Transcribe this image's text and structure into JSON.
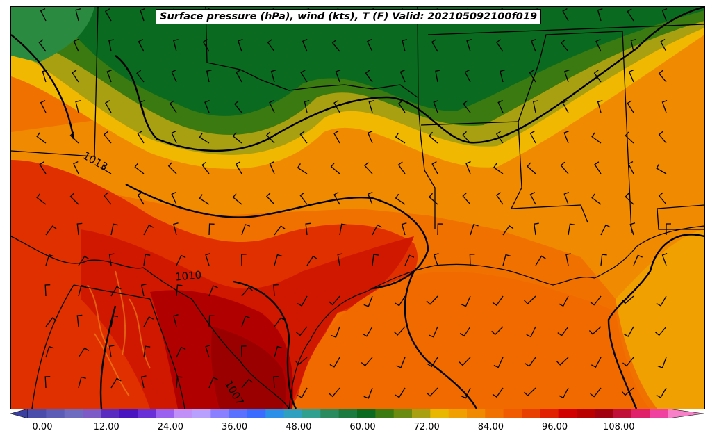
{
  "title": "Surface pressure (hPa), wind (kts), T (F) Valid: 202105092100f019",
  "isobar_labels": [
    "1013",
    "1010",
    "1007"
  ],
  "colorbar": {
    "ticks": [
      "0.00",
      "12.00",
      "24.00",
      "36.00",
      "48.00",
      "60.00",
      "72.00",
      "84.00",
      "96.00",
      "108.00"
    ],
    "colors": [
      "#3a3fa0",
      "#4a4eaa",
      "#5a5cb5",
      "#6e6cc0",
      "#7d5cc8",
      "#5a2cc0",
      "#4a14c0",
      "#6a30d8",
      "#9a60f0",
      "#c090f8",
      "#b8a0ff",
      "#8a80ff",
      "#5a70ff",
      "#3a6cff",
      "#2a90e8",
      "#30a0c0",
      "#30a090",
      "#2a8a60",
      "#1a7a40",
      "#0a6a20",
      "#3a7a10",
      "#6a8a10",
      "#a8a010",
      "#e8b800",
      "#f0a000",
      "#f08a00",
      "#f07000",
      "#f05a00",
      "#e84000",
      "#e02000",
      "#d00000",
      "#b80000",
      "#a00010",
      "#c0103a",
      "#e0206a",
      "#f040a0",
      "#f880c8"
    ]
  },
  "legend_colors": {
    "dark_green": "#0a6a20",
    "green": "#3a7a10",
    "olive": "#a8a010",
    "yellow": "#f0b800",
    "orange": "#f08a00",
    "dark_orange": "#e86a00",
    "red": "#e03000",
    "dark_red": "#b00000"
  }
}
